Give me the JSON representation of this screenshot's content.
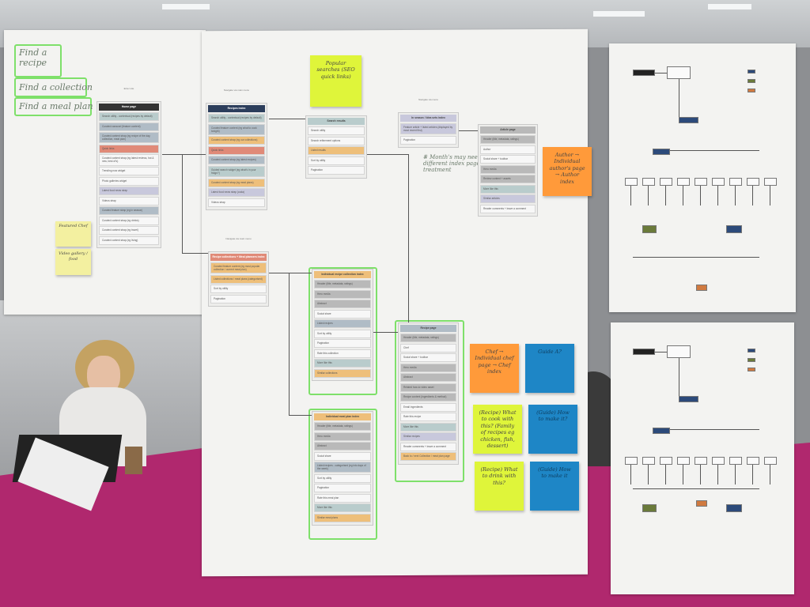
{
  "colors": {
    "header_dark": "#333333",
    "header_navy": "#2c3e5c",
    "salmon": "#e08a78",
    "orange": "#eebf7a",
    "teal": "#b9cccc",
    "grey": "#b9b9b9",
    "lavender": "#c8c8dc",
    "slate": "#b0bcc6",
    "white": "#f7f7f7",
    "sticky_lime": "#dff53a",
    "sticky_orange": "#ff9a3a",
    "sticky_blue": "#1e86c6",
    "sticky_pale": "#f3f0a0",
    "highlight_green": "#7ee06a"
  },
  "handwriting": {
    "labels": [
      "Find a recipe",
      "Find a collection",
      "Find a meal plan"
    ],
    "note": "# Month's may need a different index page treatment"
  },
  "cards": [
    {
      "id": "home-page",
      "caption": "Enter site",
      "title": "Home page",
      "hc": "header_dark",
      "items": [
        [
          "Search utility - contextual (recipes by default)",
          "teal"
        ],
        [
          "Curated carousel (feature content)",
          "slate"
        ],
        [
          "Curated content strap (eg recipe of the day, collection, meal plan)",
          "slate"
        ],
        [
          "Quick links",
          "salmon"
        ],
        [
          "Curated content strap (eg latest reviews, hot & new, best of's)",
          "white"
        ],
        [
          "Trending now widget",
          "white"
        ],
        [
          "Photo galleries widget",
          "white"
        ],
        [
          "Latest food news strap",
          "lavender"
        ],
        [
          "Videos strap",
          "white"
        ],
        [
          "Curated feature strap (eg in season)",
          "slate"
        ],
        [
          "Curated content strap (eg drinks)",
          "white"
        ],
        [
          "Curated content strap (eg travel)",
          "white"
        ],
        [
          "Curated content strap (eg living)",
          "white"
        ]
      ]
    },
    {
      "id": "recipes-index",
      "caption": "Navigate via main menu",
      "title": "Recipes index",
      "hc": "header_navy",
      "items": [
        [
          "Search utility - contextual (recipes by default)",
          "teal"
        ],
        [
          "Curated feature content (eg what to cook tonight)",
          "slate"
        ],
        [
          "Curated content strap (eg our collections)",
          "orange"
        ],
        [
          "Quick links",
          "salmon"
        ],
        [
          "Curated content strap (eg latest recipes)",
          "slate"
        ],
        [
          "Guided search widget (eg what's in your fridge?)",
          "teal"
        ],
        [
          "Curated content strap (eg meal plans)",
          "orange"
        ],
        [
          "Latest food news strap (coda)",
          "lavender"
        ],
        [
          "Videos strap",
          "white"
        ]
      ]
    },
    {
      "id": "search-results",
      "caption": "",
      "title": "Search results",
      "hc": "teal",
      "items": [
        [
          "Search utility",
          "white"
        ],
        [
          "Search refinement options",
          "white"
        ],
        [
          "Listed results",
          "orange"
        ],
        [
          "Sort by utility",
          "white"
        ],
        [
          "Pagination",
          "white"
        ]
      ]
    },
    {
      "id": "in-season-index",
      "caption": "Navigate via menu",
      "title": "In season / Idea sets index",
      "hc": "lavender",
      "items": [
        [
          "Feature article + listed articles (displayed by most recent first)",
          "lavender"
        ],
        [
          "Pagination",
          "white"
        ]
      ]
    },
    {
      "id": "article-page",
      "caption": "",
      "title": "Article page",
      "hc": "grey",
      "items": [
        [
          "Header (title, metadata, ratings)",
          "grey"
        ],
        [
          "Author",
          "white"
        ],
        [
          "Social share + toolbar",
          "white"
        ],
        [
          "Hero media",
          "grey"
        ],
        [
          "Review content + assets",
          "grey"
        ],
        [
          "More like this",
          "teal"
        ],
        [
          "Similar articles",
          "lavender"
        ],
        [
          "Reader comments + leave a comment",
          "white"
        ]
      ]
    },
    {
      "id": "collections-index",
      "caption": "Navigate via main menu",
      "title": "Recipe collections + Meal planners index",
      "hc": "salmon",
      "items": [
        [
          "Curated feature content (eg most popular collection / current meal plan)",
          "orange"
        ],
        [
          "Listed collections / meal plans (categorised)",
          "orange"
        ],
        [
          "Sort by utility",
          "white"
        ],
        [
          "Pagination",
          "white"
        ]
      ]
    },
    {
      "id": "collection-index",
      "caption": "",
      "title": "Individual recipe collection index",
      "hc": "orange",
      "items": [
        [
          "Header (title, metadata, ratings)",
          "grey"
        ],
        [
          "Hero media",
          "grey"
        ],
        [
          "Abstract",
          "grey"
        ],
        [
          "Social share",
          "white"
        ],
        [
          "Listed recipes",
          "slate"
        ],
        [
          "Sort by utility",
          "white"
        ],
        [
          "Pagination",
          "white"
        ],
        [
          "Rate this collection",
          "white"
        ],
        [
          "More like this",
          "teal"
        ],
        [
          "Similar collections",
          "orange"
        ]
      ]
    },
    {
      "id": "meal-plan-index",
      "caption": "",
      "title": "Individual meal plan index",
      "hc": "orange",
      "items": [
        [
          "Header (title, metadata, ratings)",
          "grey"
        ],
        [
          "Hero media",
          "grey"
        ],
        [
          "Abstract",
          "grey"
        ],
        [
          "Social share",
          "white"
        ],
        [
          "Listed recipes - categorised (eg into days of the week)",
          "slate"
        ],
        [
          "Sort by utility",
          "white"
        ],
        [
          "Pagination",
          "white"
        ],
        [
          "Rate this meal plan",
          "white"
        ],
        [
          "More like this",
          "teal"
        ],
        [
          "Similar meal plans",
          "orange"
        ]
      ]
    },
    {
      "id": "recipe-page",
      "caption": "",
      "title": "Recipe page",
      "hc": "slate",
      "items": [
        [
          "Header (title, metadata, ratings)",
          "grey"
        ],
        [
          "Chef",
          "white"
        ],
        [
          "Social share + toolbar",
          "white"
        ],
        [
          "Hero media",
          "grey"
        ],
        [
          "Abstract",
          "grey"
        ],
        [
          "Related how-to video asset",
          "grey"
        ],
        [
          "Recipe content (ingredients & method)",
          "grey"
        ],
        [
          "Email ingredients",
          "white"
        ],
        [
          "Rate this recipe",
          "white"
        ],
        [
          "More like this",
          "teal"
        ],
        [
          "Similar recipes",
          "lavender"
        ],
        [
          "Reader comments + leave a comment",
          "white"
        ],
        [
          "Back to / next Collection / meal plan page",
          "orange"
        ]
      ]
    }
  ],
  "stickies": [
    {
      "text": "Popular searches (SEO quick links)",
      "c": "sticky_lime"
    },
    {
      "text": "Author → Individual author's page → Author index",
      "c": "sticky_orange"
    },
    {
      "text": "Featured Chef",
      "c": "sticky_pale"
    },
    {
      "text": "Video gallery / food",
      "c": "sticky_pale"
    },
    {
      "text": "Chef → Individual chef page → Chef index",
      "c": "sticky_orange"
    },
    {
      "text": "Guide A?",
      "c": "sticky_blue"
    },
    {
      "text": "(Recipe) What to cook with this? (Family of recipes eg chicken, fish, dessert)",
      "c": "sticky_lime"
    },
    {
      "text": "(Guide) How to make it?",
      "c": "sticky_blue"
    },
    {
      "text": "(Recipe) What to drink with this?",
      "c": "sticky_lime"
    },
    {
      "text": "(Guide) How to make it",
      "c": "sticky_blue"
    }
  ]
}
